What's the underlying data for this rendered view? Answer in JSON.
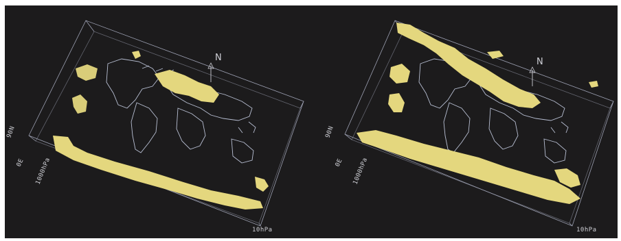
{
  "colors": {
    "background": "#1c1b1c",
    "isosurface": "#e4d77e",
    "box_lines": "#9ea2b4",
    "coastlines": "#b9c0d4"
  },
  "panels": [
    {
      "id": "left",
      "labels": {
        "north": "N",
        "top_left": "90N",
        "mid_left": "0E",
        "axis": "1000hPa",
        "bottom_right": "10hPa"
      }
    },
    {
      "id": "right",
      "labels": {
        "north": "N",
        "top_left": "90N",
        "mid_left": "0E",
        "axis": "1000hPa",
        "bottom_right": "10hPa"
      }
    }
  ],
  "icons": [
    "north-arrow-icon",
    "north-arrow-icon"
  ]
}
